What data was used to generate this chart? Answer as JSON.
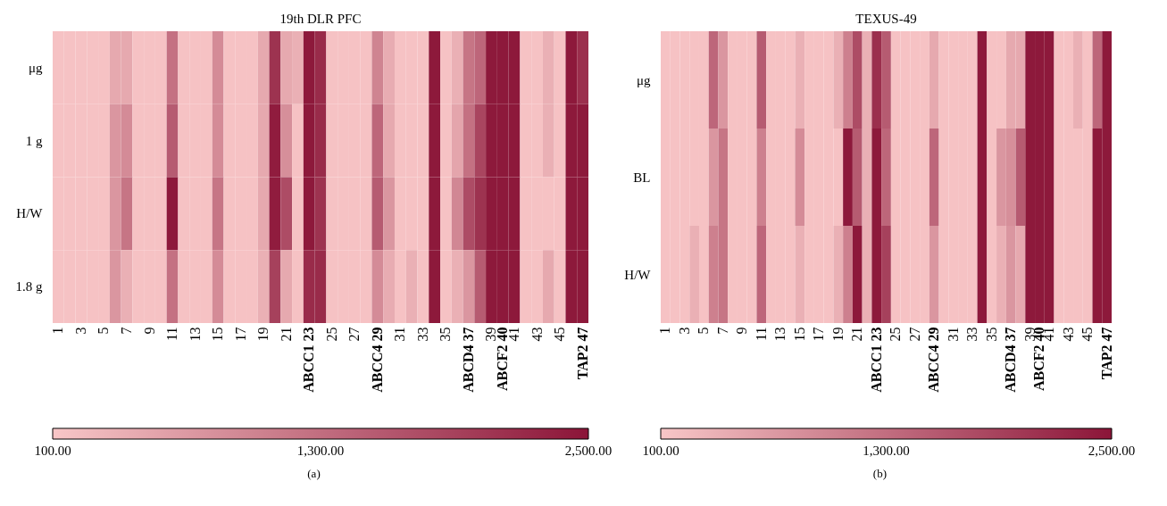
{
  "chart_data": [
    {
      "type": "heatmap",
      "title": "19th DLR PFC",
      "annotations": [
        "(a)"
      ],
      "categories": [
        "1",
        null,
        "3",
        null,
        "5",
        null,
        "7",
        null,
        "9",
        null,
        "11",
        null,
        "13",
        null,
        "15",
        null,
        "17",
        null,
        "19",
        null,
        "21",
        null,
        "ABCC1 23",
        null,
        "25",
        null,
        "27",
        null,
        "ABCC4 29",
        null,
        "31",
        null,
        "33",
        null,
        "35",
        null,
        "ABCD4 37",
        null,
        "39",
        "ABCF2 40",
        "41",
        null,
        "43",
        null,
        "45",
        null,
        "TAP2 47"
      ],
      "y_categories": [
        "μg",
        "1 g",
        "H/W",
        "1.8 g"
      ],
      "cells": [
        [
          150,
          150,
          150,
          150,
          150,
          500,
          500,
          150,
          150,
          150,
          1250,
          150,
          150,
          150,
          900,
          150,
          150,
          150,
          500,
          2100,
          500,
          400,
          2450,
          2200,
          150,
          150,
          150,
          150,
          1000,
          450,
          150,
          150,
          150,
          2450,
          150,
          400,
          1200,
          1400,
          2450,
          2450,
          2450,
          150,
          150,
          400,
          150,
          2450,
          2150
        ],
        [
          150,
          150,
          150,
          150,
          150,
          750,
          900,
          150,
          150,
          150,
          1550,
          150,
          150,
          150,
          900,
          150,
          150,
          150,
          500,
          2400,
          850,
          150,
          2450,
          2200,
          150,
          150,
          150,
          150,
          1400,
          500,
          150,
          150,
          150,
          2450,
          150,
          550,
          1250,
          1850,
          2450,
          2450,
          2450,
          150,
          150,
          400,
          150,
          2450,
          2450
        ],
        [
          150,
          150,
          150,
          150,
          150,
          750,
          1200,
          150,
          150,
          150,
          2450,
          150,
          150,
          150,
          1200,
          150,
          150,
          150,
          500,
          2400,
          1750,
          150,
          2450,
          2100,
          150,
          150,
          150,
          150,
          1550,
          750,
          150,
          150,
          150,
          2450,
          150,
          950,
          1750,
          2100,
          2450,
          2450,
          2450,
          150,
          150,
          150,
          150,
          2450,
          2450
        ],
        [
          150,
          150,
          150,
          150,
          150,
          750,
          400,
          150,
          150,
          150,
          1250,
          150,
          150,
          150,
          900,
          150,
          150,
          150,
          400,
          1900,
          500,
          150,
          2200,
          2200,
          150,
          150,
          150,
          150,
          900,
          450,
          150,
          400,
          150,
          2450,
          150,
          400,
          750,
          1550,
          2450,
          2450,
          2450,
          150,
          150,
          500,
          150,
          2450,
          2450
        ]
      ],
      "clim": [
        100,
        2500
      ],
      "cticks": [
        {
          "value": 100,
          "label": "100.00"
        },
        {
          "value": 1300,
          "label": "1,300.00"
        },
        {
          "value": 2500,
          "label": "2,500.00"
        }
      ]
    },
    {
      "type": "heatmap",
      "title": "TEXUS-49",
      "annotations": [
        "(b)"
      ],
      "categories": [
        "1",
        null,
        "3",
        null,
        "5",
        null,
        "7",
        null,
        "9",
        null,
        "11",
        null,
        "13",
        null,
        "15",
        null,
        "17",
        null,
        "19",
        null,
        "21",
        null,
        "ABCC1 23",
        null,
        "25",
        null,
        "27",
        null,
        "ABCC4 29",
        null,
        "31",
        null,
        "33",
        null,
        "35",
        null,
        "ABCD4 37",
        null,
        "39",
        "ABCF2 40",
        "41",
        null,
        "43",
        null,
        "45",
        null,
        "TAP2 47"
      ],
      "y_categories": [
        "μg",
        "BL",
        "H/W"
      ],
      "cells": [
        [
          150,
          150,
          150,
          150,
          150,
          1400,
          750,
          150,
          150,
          150,
          1550,
          150,
          150,
          150,
          400,
          150,
          150,
          150,
          400,
          1050,
          1750,
          400,
          2150,
          1550,
          150,
          150,
          150,
          150,
          500,
          150,
          150,
          150,
          150,
          2450,
          150,
          150,
          500,
          500,
          2450,
          2450,
          2450,
          150,
          150,
          400,
          150,
          1400,
          2450
        ],
        [
          150,
          150,
          150,
          150,
          150,
          750,
          1200,
          150,
          150,
          150,
          1050,
          150,
          150,
          150,
          900,
          150,
          150,
          150,
          150,
          2450,
          1550,
          400,
          2450,
          1400,
          150,
          150,
          150,
          150,
          1400,
          150,
          150,
          150,
          150,
          2450,
          150,
          750,
          850,
          1550,
          2450,
          2450,
          2450,
          150,
          150,
          150,
          150,
          2450,
          2450
        ],
        [
          150,
          150,
          150,
          400,
          150,
          1050,
          1200,
          150,
          150,
          150,
          1400,
          150,
          150,
          150,
          400,
          150,
          150,
          150,
          400,
          1050,
          2450,
          400,
          2450,
          1900,
          150,
          150,
          150,
          150,
          750,
          150,
          150,
          150,
          150,
          2450,
          150,
          400,
          750,
          500,
          2450,
          2450,
          2450,
          150,
          150,
          150,
          150,
          2450,
          2450
        ]
      ],
      "clim": [
        100,
        2500
      ],
      "cticks": [
        {
          "value": 100,
          "label": "100.00"
        },
        {
          "value": 1300,
          "label": "1,300.00"
        },
        {
          "value": 2500,
          "label": "2,500.00"
        }
      ]
    }
  ]
}
